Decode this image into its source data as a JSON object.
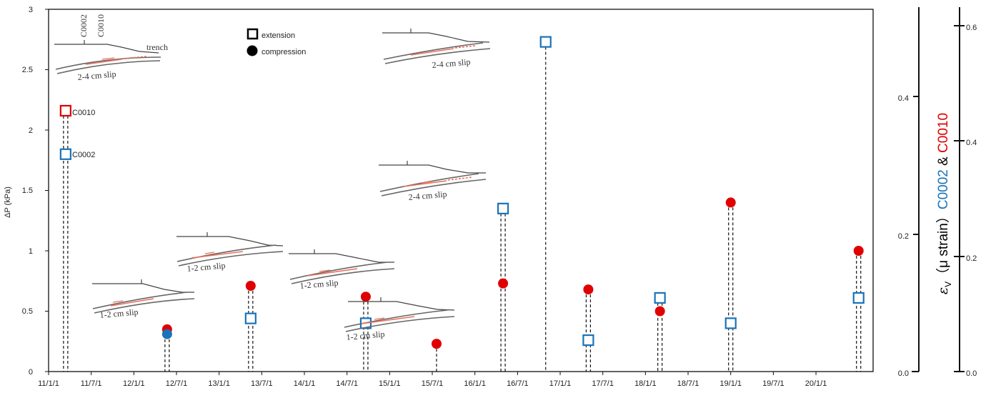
{
  "chart_data": {
    "type": "scatter",
    "title": "",
    "ylabel": "ΔP (kPa)",
    "xlim_years": [
      2011.0,
      2020.67
    ],
    "ylim": [
      0,
      3
    ],
    "yticks": [
      "0",
      "0.5",
      "1",
      "1.5",
      "2",
      "2.5",
      "3"
    ],
    "xticks": [
      "11/1/1",
      "11/7/1",
      "12/1/1",
      "12/7/1",
      "13/1/1",
      "13/7/1",
      "14/1/1",
      "14/7/1",
      "15/1/1",
      "15/7/1",
      "16/1/1",
      "16/7/1",
      "17/1/1",
      "17/7/1",
      "18/1/1",
      "18/7/1",
      "19/1/1",
      "19/7/1",
      "20/1/1"
    ],
    "legend": {
      "extension": "extension",
      "compression": "compression"
    },
    "right_axes": {
      "c0002": {
        "label": "C0002",
        "ylim": [
          0,
          0.53
        ],
        "ticks": [
          "0.0",
          "0.2",
          "0.4"
        ],
        "color": "#1a73b8"
      },
      "c0010": {
        "label": "C0010",
        "ylim": [
          0,
          0.63
        ],
        "ticks": [
          "0.0",
          "0.2",
          "0.4",
          "0.6"
        ],
        "color": "#e00000"
      },
      "prefix": "𝜀",
      "subscript": "V",
      "strain": "（μ strain）",
      "amp": " & "
    },
    "point_labels": {
      "c0010": "C0010",
      "c0002": "C0002"
    },
    "series": [
      {
        "name": "extension",
        "marker": "square",
        "color": "#1a73b8",
        "points": [
          {
            "x": 2011.2,
            "y": 1.8
          },
          {
            "x": 2013.37,
            "y": 0.44
          },
          {
            "x": 2014.72,
            "y": 0.4
          },
          {
            "x": 2016.33,
            "y": 1.35
          },
          {
            "x": 2016.83,
            "y": 2.73
          },
          {
            "x": 2017.33,
            "y": 0.26
          },
          {
            "x": 2018.17,
            "y": 0.61
          },
          {
            "x": 2019.0,
            "y": 0.4
          },
          {
            "x": 2020.5,
            "y": 0.61
          }
        ]
      },
      {
        "name": "extension",
        "marker": "square",
        "color": "#e00000",
        "points": [
          {
            "x": 2011.2,
            "y": 2.16
          }
        ]
      },
      {
        "name": "compression",
        "marker": "circle",
        "color": "#e00000",
        "points": [
          {
            "x": 2012.39,
            "y": 0.35
          },
          {
            "x": 2013.37,
            "y": 0.71
          },
          {
            "x": 2014.72,
            "y": 0.62
          },
          {
            "x": 2015.55,
            "y": 0.23
          },
          {
            "x": 2016.33,
            "y": 0.73
          },
          {
            "x": 2017.33,
            "y": 0.68
          },
          {
            "x": 2018.17,
            "y": 0.5
          },
          {
            "x": 2019.0,
            "y": 1.4
          },
          {
            "x": 2020.5,
            "y": 1.0
          }
        ]
      },
      {
        "name": "compression",
        "marker": "circle",
        "color": "#1a73b8",
        "points": [
          {
            "x": 2012.39,
            "y": 0.31
          }
        ]
      }
    ],
    "annotations": {
      "c0002_label": "C0002",
      "c0010_label": "C0010",
      "trench": "trench",
      "slip_24": "2-4 cm slip",
      "slip_12": "1-2 cm slip"
    }
  }
}
